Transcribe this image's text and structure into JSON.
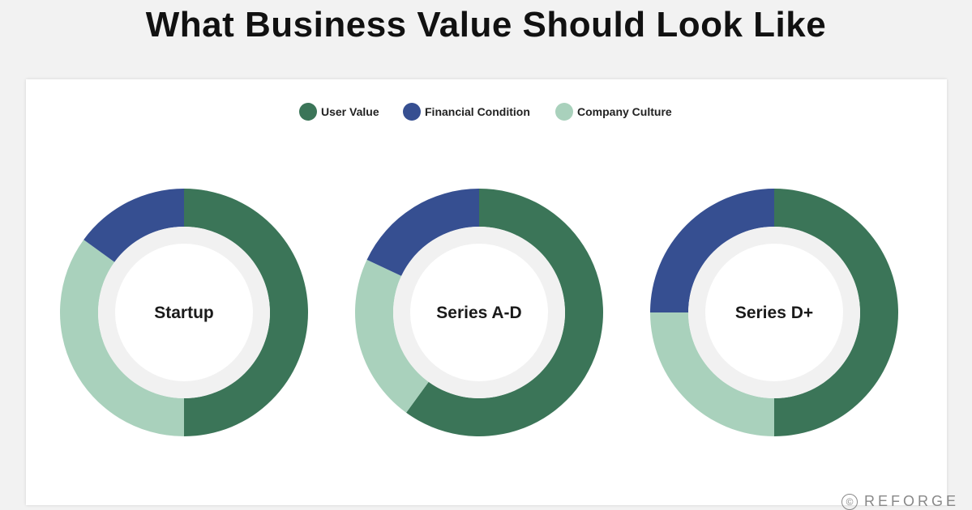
{
  "title": "What Business Value Should Look Like",
  "watermark": {
    "symbol": "©",
    "text": "REFORGE"
  },
  "colors": {
    "user_value": "#3b7558",
    "financial_condition": "#364f91",
    "company_culture": "#a9d1bc",
    "inner_ring": "#f1f1f1"
  },
  "legend": [
    {
      "label": "User Value",
      "color": "#3b7558"
    },
    {
      "label": "Financial Condition",
      "color": "#364f91"
    },
    {
      "label": "Company Culture",
      "color": "#a9d1bc"
    }
  ],
  "chart_data": [
    {
      "type": "pie",
      "title": "Startup",
      "series": [
        {
          "name": "User Value",
          "value": 50
        },
        {
          "name": "Company Culture",
          "value": 35
        },
        {
          "name": "Financial Condition",
          "value": 15
        }
      ]
    },
    {
      "type": "pie",
      "title": "Series A-D",
      "series": [
        {
          "name": "User Value",
          "value": 60
        },
        {
          "name": "Company Culture",
          "value": 22
        },
        {
          "name": "Financial Condition",
          "value": 18
        }
      ]
    },
    {
      "type": "pie",
      "title": "Series D+",
      "series": [
        {
          "name": "User Value",
          "value": 50
        },
        {
          "name": "Company Culture",
          "value": 25
        },
        {
          "name": "Financial Condition",
          "value": 25
        }
      ]
    }
  ]
}
